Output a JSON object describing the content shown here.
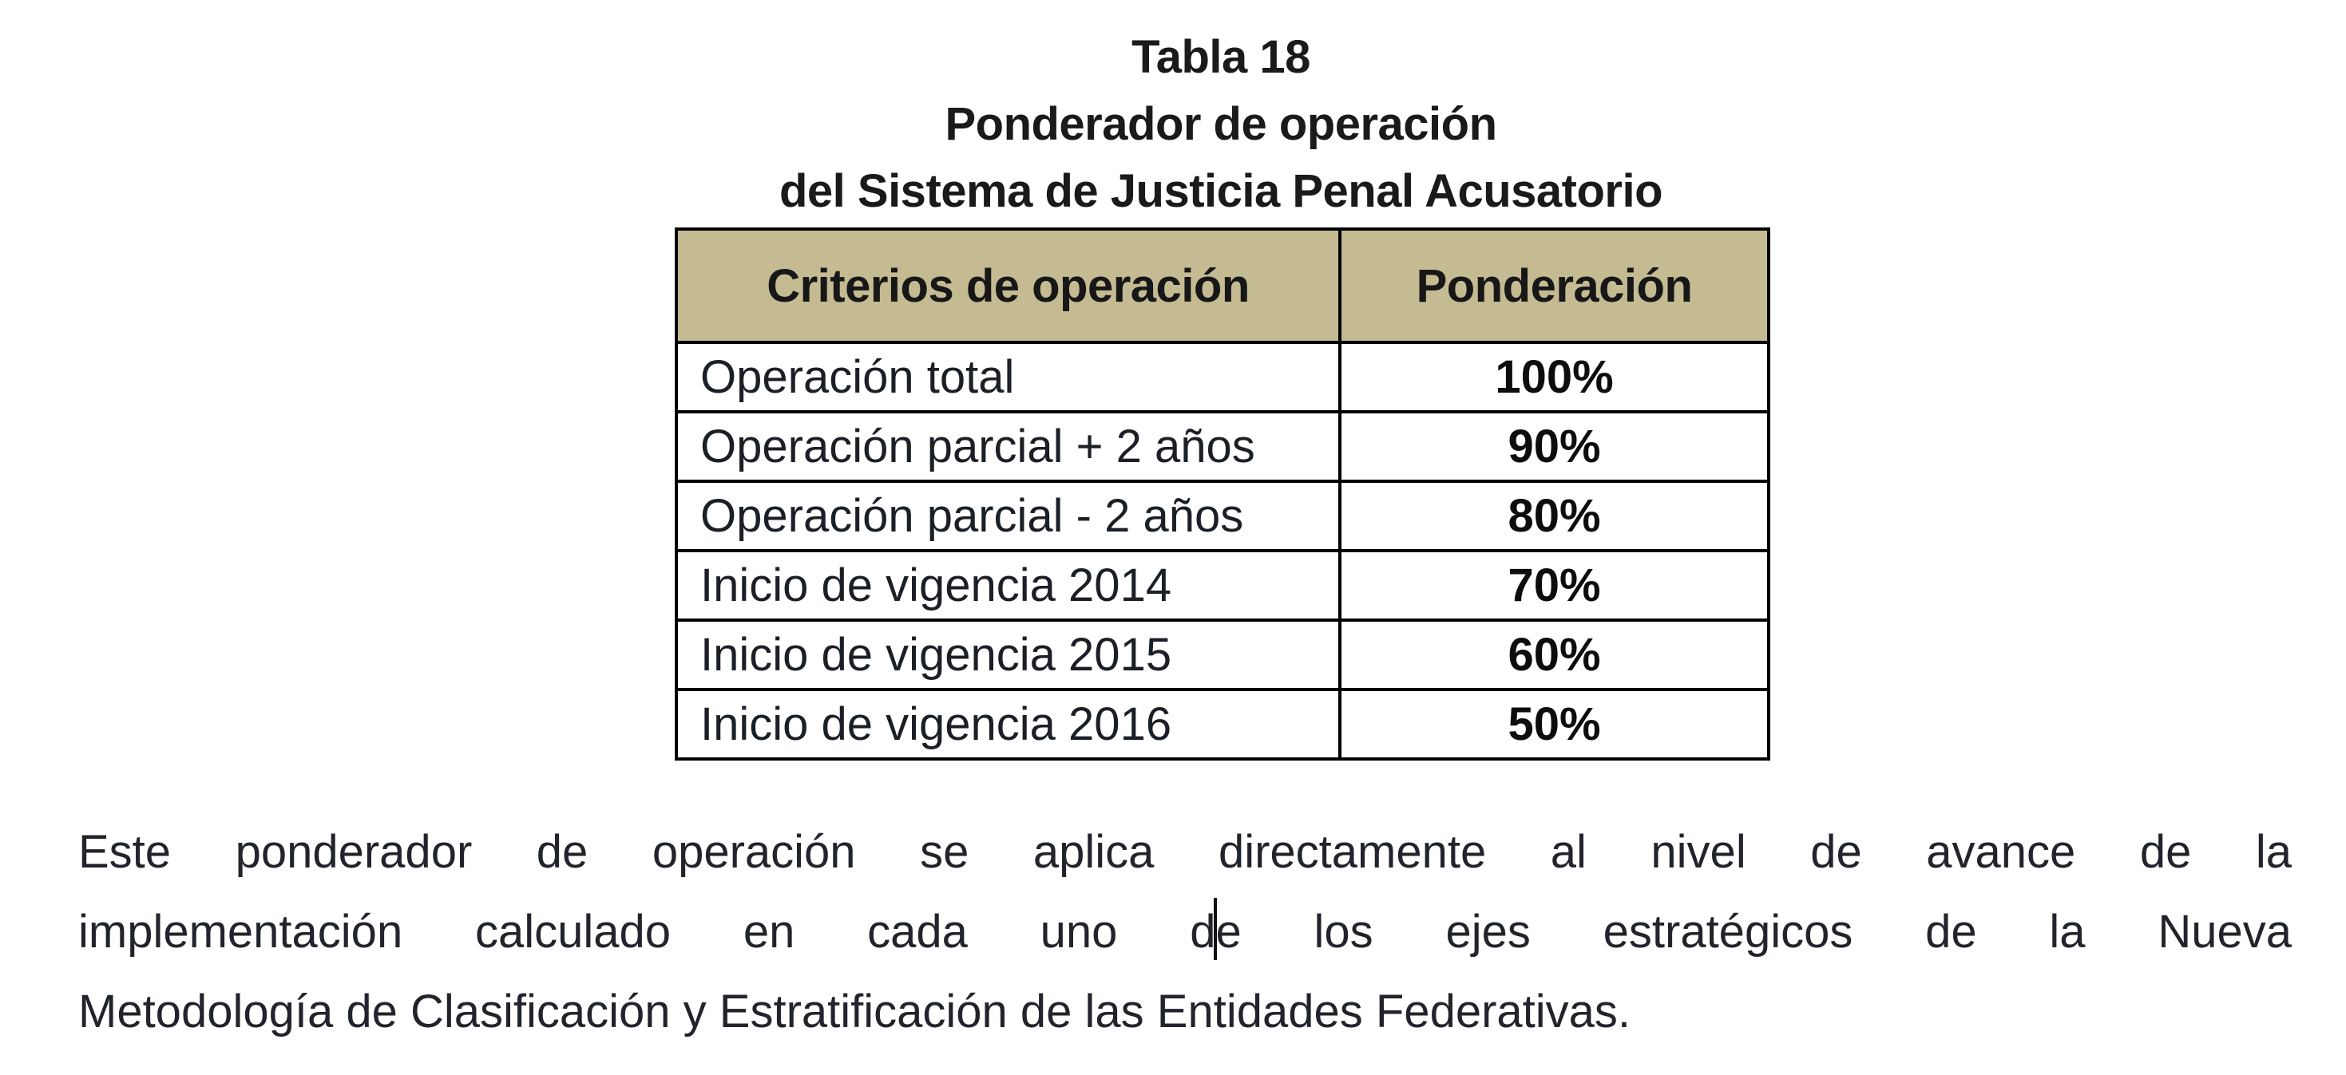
{
  "caption": {
    "line1": "Tabla 18",
    "line2": "Ponderador de operación",
    "line3": "del Sistema de Justicia Penal Acusatorio"
  },
  "table": {
    "headers": [
      "Criterios de operación",
      "Ponderación"
    ],
    "rows": [
      {
        "criterio": "Operación total",
        "ponderacion": "100%"
      },
      {
        "criterio": "Operación parcial + 2 años",
        "ponderacion": "90%"
      },
      {
        "criterio": "Operación parcial - 2 años",
        "ponderacion": "80%"
      },
      {
        "criterio": "Inicio de vigencia 2014",
        "ponderacion": "70%"
      },
      {
        "criterio": "Inicio de vigencia 2015",
        "ponderacion": "60%"
      },
      {
        "criterio": "Inicio de vigencia 2016",
        "ponderacion": "50%"
      }
    ]
  },
  "paragraph": {
    "line1": "Este ponderador de operación se aplica directamente al nivel de avance de la",
    "line2_before_caret": "implementación calculado en cada uno d",
    "line2_after_caret": "e los ejes estratégicos de la Nueva",
    "line3": "Metodología de Clasificación y Estratificación de las Entidades Federativas."
  },
  "colors": {
    "header_background": "#c4bb93",
    "table_border": "#000000",
    "text": "#1a1a1a",
    "page_background": "#ffffff"
  }
}
